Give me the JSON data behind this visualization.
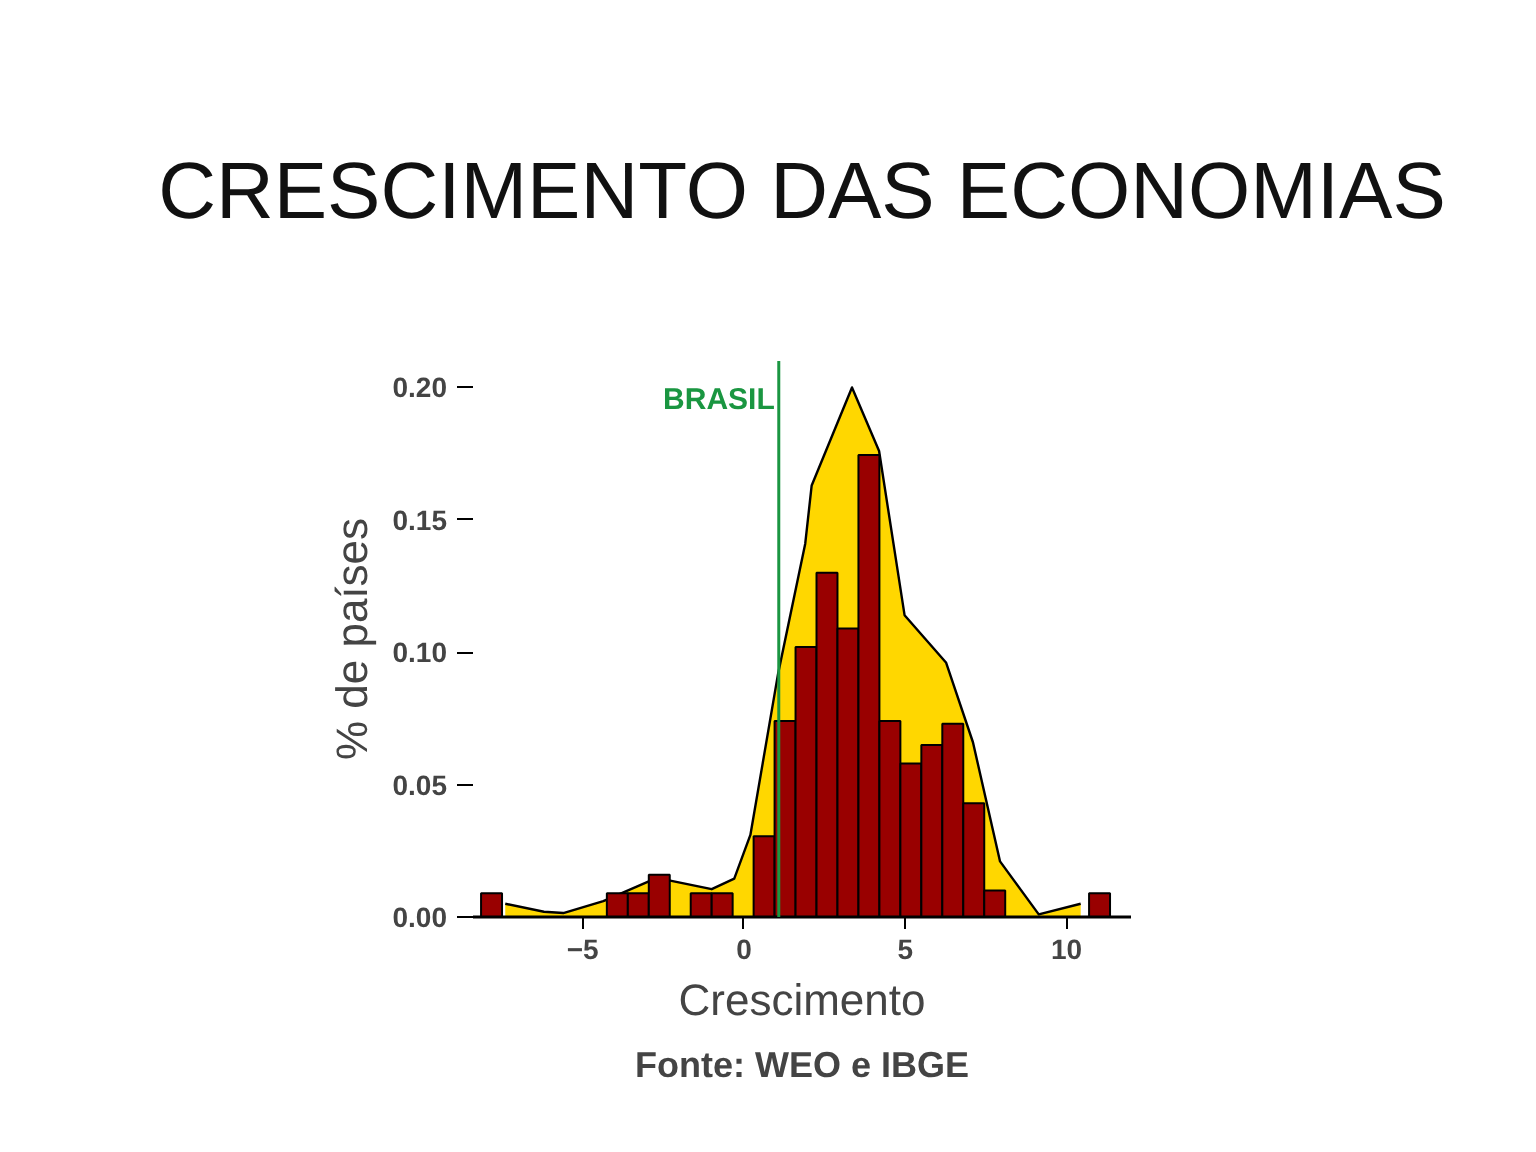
{
  "chart_data": {
    "type": "histogram",
    "title": "CRESCIMENTO DAS ECONOMIAS",
    "xlabel": "Crescimento",
    "ylabel": "% de países",
    "annotations": [
      "Fonte: WEO e IBGE"
    ],
    "series": [
      {
        "type": "area",
        "color": "#ffd700",
        "x": [
          -7.4,
          -6.2,
          -5.6,
          -4.36,
          -2.7,
          -1.0,
          -0.3,
          0.2,
          1.06,
          1.9,
          2.1,
          3.35,
          4.19,
          4.98,
          6.27,
          7.1,
          7.94,
          9.14,
          10.44
        ],
        "values": [
          0.005,
          0.002,
          0.0015,
          0.006,
          0.0148,
          0.0105,
          0.0145,
          0.031,
          0.092,
          0.141,
          0.163,
          0.2,
          0.176,
          0.114,
          0.096,
          0.066,
          0.021,
          0.001,
          0.005
        ]
      },
      {
        "color": "#990000",
        "bins": [
          -8.15,
          -7.5,
          -6.85,
          -6.2,
          -5.55,
          -4.9,
          -4.25,
          -3.6,
          -2.95,
          -2.3,
          -1.65,
          -1.0,
          -0.35,
          0.3,
          0.95,
          1.6,
          2.25,
          2.9,
          3.55,
          4.2,
          4.85,
          5.5,
          6.15,
          6.8,
          7.45,
          8.1,
          8.75,
          9.4,
          10.05,
          10.7,
          11.35
        ],
        "values": [
          0.009,
          0,
          0,
          0,
          0,
          0,
          0.009,
          0.009,
          0.016,
          0,
          0.009,
          0.009,
          0,
          0.0305,
          0.074,
          0.102,
          0.13,
          0.109,
          0.1745,
          0.074,
          0.058,
          0.065,
          0.073,
          0.043,
          0.01,
          0,
          0,
          0,
          0,
          0.009
        ]
      }
    ],
    "ref_lines": [
      {
        "axis": "x",
        "value": 1.08,
        "label": "BRASIL",
        "color": "#1a9641"
      }
    ],
    "xlim": [
      -8.4,
      12.0
    ],
    "xticks": [
      -5,
      0,
      5,
      10
    ],
    "ylim": [
      0,
      0.21
    ],
    "yticks": [
      {
        "value": 0,
        "label": "0.00"
      },
      {
        "value": 0.05,
        "label": "0.05"
      },
      {
        "value": 0.1,
        "label": "0.10"
      },
      {
        "value": 0.15,
        "label": "0.15"
      },
      {
        "value": 0.2,
        "label": "0.20"
      }
    ],
    "grid": false
  }
}
